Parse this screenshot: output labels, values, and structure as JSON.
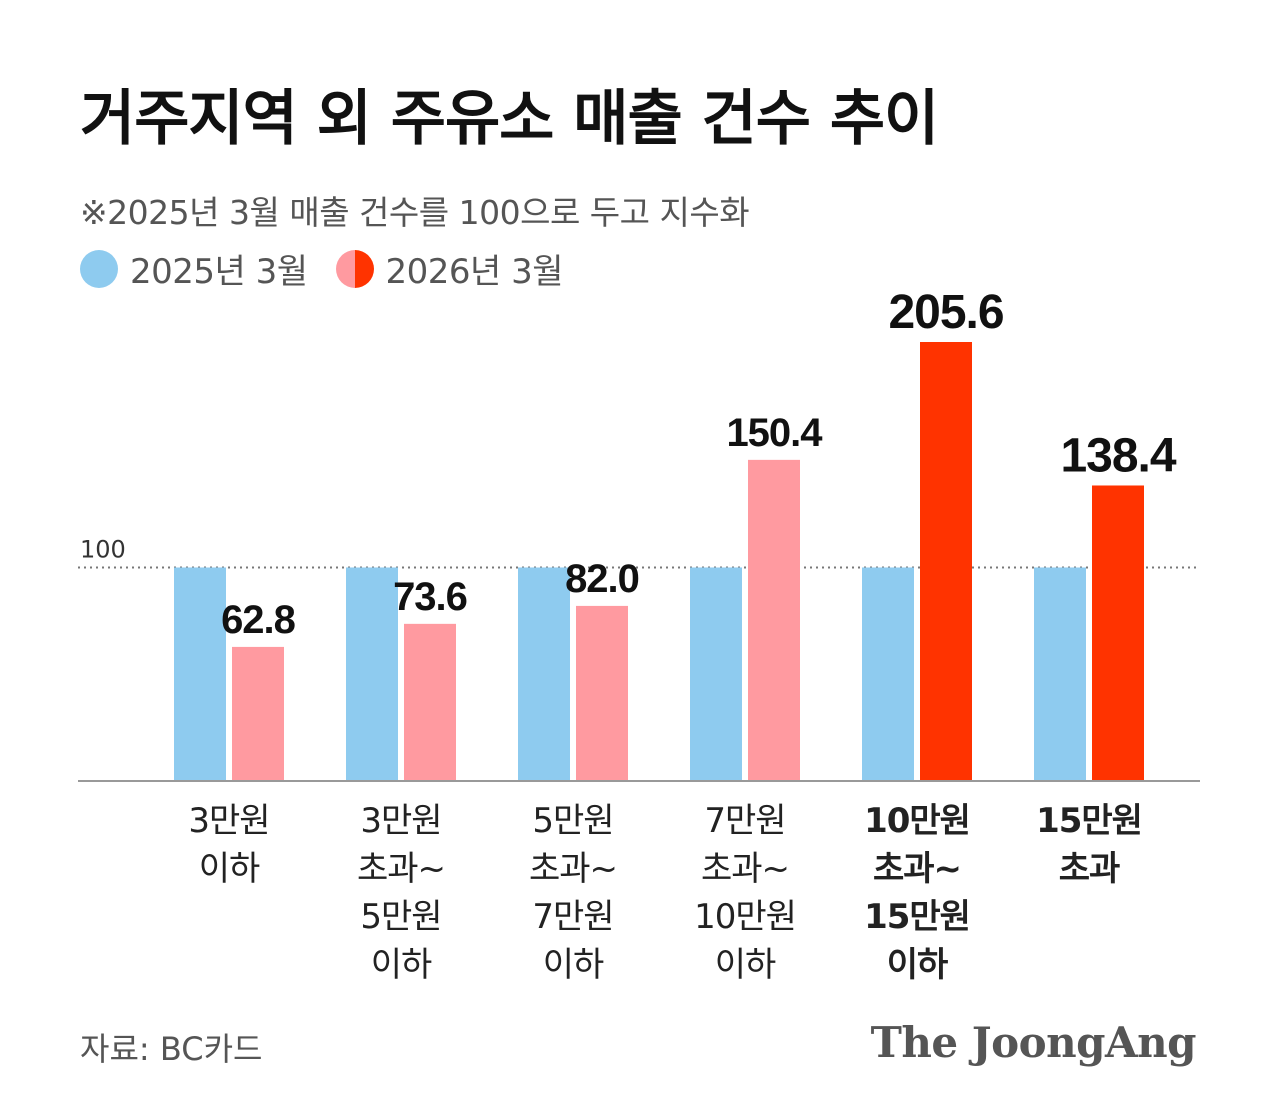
{
  "title": "거주지역 외 주유소 매출 건수 추이",
  "subtitle": "※2025년 3월 매출 건수를 100으로 두고 지수화",
  "legend": [
    {
      "label": "2025년 3월",
      "color": "#8ECBEF"
    },
    {
      "label": "2026년 3월",
      "color_left": "#FF9AA0",
      "color_right": "#FF3300"
    }
  ],
  "source": "자료: BC카드",
  "brand": "The JoongAng",
  "colors": {
    "base": "#8ECBEF",
    "current_light": "#FF9AA0",
    "current_strong": "#FF3300"
  },
  "chart_data": {
    "type": "bar",
    "categories": [
      [
        "3만원",
        "이하"
      ],
      [
        "3만원",
        "초과~",
        "5만원",
        "이하"
      ],
      [
        "5만원",
        "초과~",
        "7만원",
        "이하"
      ],
      [
        "7만원",
        "초과~",
        "10만원",
        "이하"
      ],
      [
        "10만원",
        "초과~",
        "15만원",
        "이하"
      ],
      [
        "15만원",
        "초과"
      ]
    ],
    "series": [
      {
        "name": "2025년 3월",
        "values": [
          100,
          100,
          100,
          100,
          100,
          100
        ]
      },
      {
        "name": "2026년 3월",
        "values": [
          62.8,
          73.6,
          82.0,
          150.4,
          205.6,
          138.4
        ],
        "labels": [
          "62.8",
          "73.6",
          "82.0",
          "150.4",
          "205.6",
          "138.4"
        ],
        "emphasis": [
          false,
          false,
          false,
          false,
          true,
          true
        ]
      }
    ],
    "reference_line": {
      "value": 100,
      "label": "100"
    },
    "ylim": [
      0,
      205.6
    ],
    "grid": false
  }
}
